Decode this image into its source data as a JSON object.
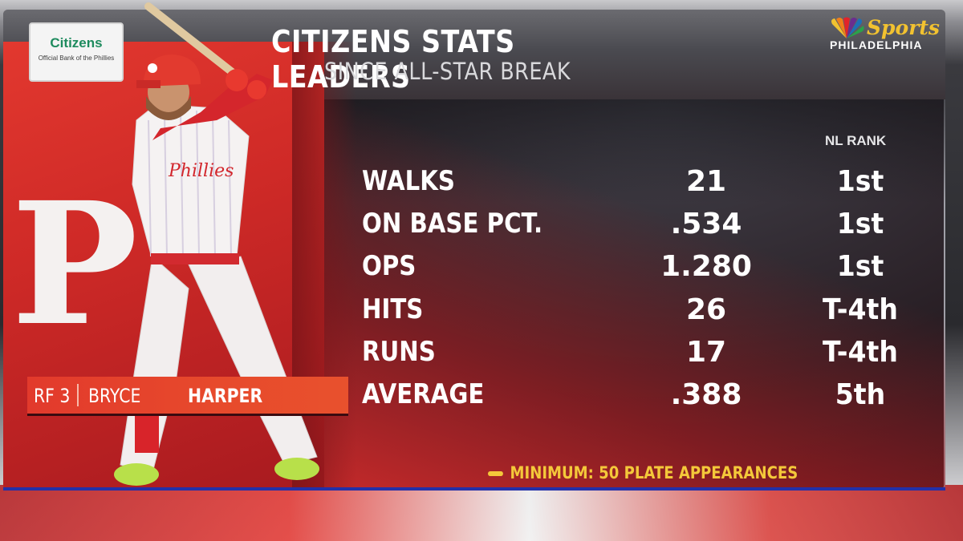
{
  "graphic": {
    "title": "CITIZENS STATS LEADERS",
    "subtitle": "SINCE ALL-STAR BREAK",
    "sponsor": {
      "brand": "Citizens",
      "tagline": "Official Bank of the Phillies"
    },
    "network": {
      "brand": "Sports",
      "city": "PHILADELPHIA"
    },
    "team_logo_letter": "P",
    "rank_header": "NL RANK",
    "stats": [
      {
        "label": "WALKS",
        "value": "21",
        "rank": "1st"
      },
      {
        "label": "ON BASE PCT.",
        "value": ".534",
        "rank": "1st"
      },
      {
        "label": "OPS",
        "value": "1.280",
        "rank": "1st"
      },
      {
        "label": "HITS",
        "value": "26",
        "rank": "T-4th"
      },
      {
        "label": "RUNS",
        "value": "17",
        "rank": "T-4th"
      },
      {
        "label": "AVERAGE",
        "value": ".388",
        "rank": "5th"
      }
    ],
    "player": {
      "position_number": "RF 3",
      "first_name": "BRYCE",
      "last_name": "HARPER"
    },
    "footnote": "MINIMUM: 50 PLATE APPEARANCES"
  },
  "colors": {
    "phillies_red": "#e2382f",
    "accent_yellow": "#f4c83a",
    "citizens_green": "#1e8b5e",
    "bottom_line_blue": "#2330a8"
  }
}
